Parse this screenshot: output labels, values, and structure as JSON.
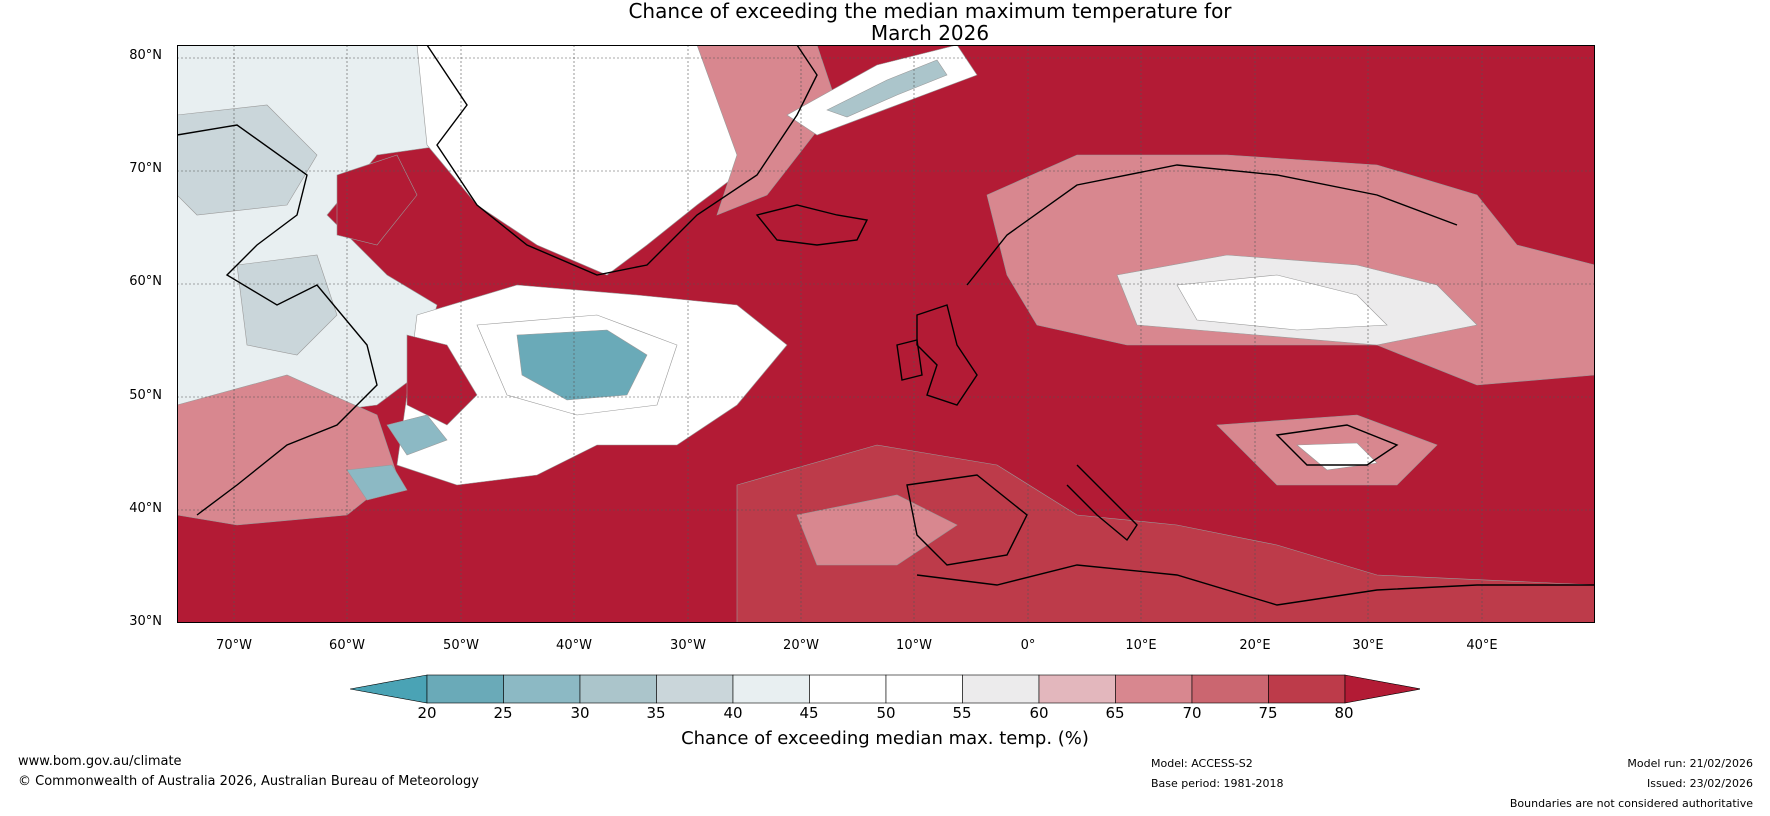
{
  "title": {
    "line1": "Chance of exceeding the median maximum temperature for",
    "line2": "March 2026"
  },
  "map": {
    "latitude_labels": [
      "80°N",
      "70°N",
      "60°N",
      "50°N",
      "40°N",
      "30°N"
    ],
    "longitude_labels": [
      "70°W",
      "60°W",
      "50°W",
      "40°W",
      "30°W",
      "20°W",
      "10°W",
      "0°",
      "10°E",
      "20°E",
      "30°E",
      "40°E"
    ],
    "lat_range": [
      30,
      81
    ],
    "lon_range": [
      -75,
      50
    ],
    "region_levels": {
      "ocean_background": 80,
      "greenland_interior": 50,
      "canada_arctic": 40,
      "labrador": 35,
      "north_atlantic_cool_core": 20,
      "north_atlantic_cool_halo": 45,
      "newfoundland_cool": 25,
      "svalbard_cool": 30,
      "scandinavia": 65,
      "russia_west": 55,
      "mediterranean": 80,
      "north_africa": 75
    }
  },
  "colorbar": {
    "title": "Chance of exceeding median max. temp. (%)",
    "ticks": [
      "20",
      "25",
      "30",
      "35",
      "40",
      "45",
      "50",
      "55",
      "60",
      "65",
      "70",
      "75",
      "80"
    ],
    "colors": [
      "#4aa3b5",
      "#6aaab8",
      "#8cb9c4",
      "#abc5cb",
      "#cad6da",
      "#e8eff1",
      "#ffffff",
      "#ffffff",
      "#ecebec",
      "#e3b7bd",
      "#d8878f",
      "#cb6670",
      "#bd3b4a",
      "#b31b35"
    ]
  },
  "footer": {
    "website": "www.bom.gov.au/climate",
    "copyright": "© Commonwealth of Australia 2026, Australian Bureau of Meteorology",
    "model": "Model: ACCESS-S2",
    "base_period": "Base period: 1981-2018",
    "model_run": "Model run: 21/02/2026",
    "issued": "Issued: 23/02/2026",
    "disclaimer": "Boundaries are not considered authoritative"
  }
}
